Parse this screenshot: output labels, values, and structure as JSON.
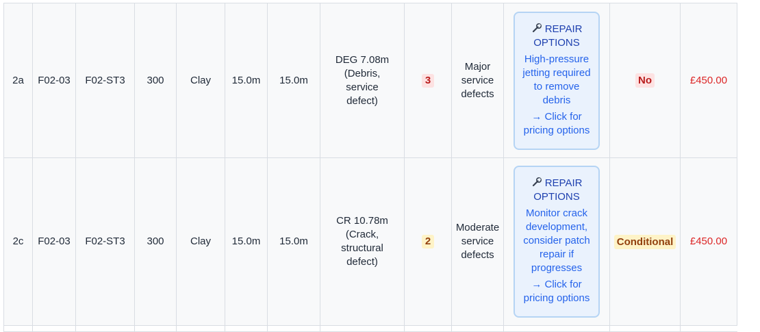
{
  "rows": [
    {
      "item": "2a",
      "pipe_ref": "F02-03",
      "start_node": "F02-ST3",
      "diameter": "300",
      "material": "Clay",
      "length_1": "15.0m",
      "length_2": "15.0m",
      "defect_line1": "DEG 7.08m",
      "defect_line2": "(Debris,",
      "defect_line3": "service",
      "defect_line4": "defect)",
      "severity": "3",
      "severity_color": "#fde2e2",
      "recommendation_line1": "Major",
      "recommendation_line2": "service",
      "recommendation_line3": "defects",
      "repair": {
        "icon": "wrench-icon",
        "title_line1": "REPAIR",
        "title_line2": "OPTIONS",
        "desc_line1": "High-pressure",
        "desc_line2": "jetting required",
        "desc_line3": "to remove",
        "desc_line4": "debris",
        "link_line1": "→ Click for",
        "link_line2": "pricing options"
      },
      "adoptable": "No",
      "adoptable_color": "#fde2e2",
      "cost": "£450.00"
    },
    {
      "item": "2c",
      "pipe_ref": "F02-03",
      "start_node": "F02-ST3",
      "diameter": "300",
      "material": "Clay",
      "length_1": "15.0m",
      "length_2": "15.0m",
      "defect_line1": "CR 10.78m",
      "defect_line2": "(Crack,",
      "defect_line3": "structural",
      "defect_line4": "defect)",
      "severity": "2",
      "severity_color": "#fef3c7",
      "recommendation_line1": "Moderate",
      "recommendation_line2": "service",
      "recommendation_line3": "defects",
      "repair": {
        "icon": "wrench-icon",
        "title_line1": "REPAIR",
        "title_line2": "OPTIONS",
        "desc_line1": "Monitor crack",
        "desc_line2": "development,",
        "desc_line3": "consider patch",
        "desc_line4": "repair if",
        "desc_line5": "progresses",
        "link_line1": "→ Click for",
        "link_line2": "pricing options"
      },
      "adoptable": "Conditional",
      "adoptable_color": "#fef3c7",
      "cost": "£450.00"
    }
  ],
  "colors": {
    "cost_text": "#dc2626",
    "repair_link": "#2563eb",
    "repair_border": "#b5d4f4"
  }
}
